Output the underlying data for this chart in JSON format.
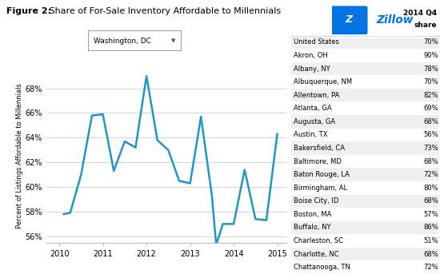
{
  "title_bold": "Figure 2:",
  "title_rest": " Share of For-Sale Inventory Affordable to Millennials",
  "dropdown_label": "Washington, DC",
  "ylabel": "Percent of Listings Affordable to Millennials",
  "ylim": [
    55.5,
    69.5
  ],
  "yticks": [
    56,
    58,
    60,
    62,
    64,
    66,
    68
  ],
  "ytick_labels": [
    "56%",
    "58%",
    "60%",
    "62%",
    "64%",
    "66%",
    "68%"
  ],
  "xlim": [
    2009.7,
    2015.2
  ],
  "xticks": [
    2010,
    2011,
    2012,
    2013,
    2014,
    2015
  ],
  "line_color": "#2196c4",
  "line_width": 1.8,
  "x_data": [
    2010.1,
    2010.25,
    2010.5,
    2010.75,
    2011.0,
    2011.25,
    2011.5,
    2011.75,
    2012.0,
    2012.25,
    2012.5,
    2012.75,
    2013.0,
    2013.25,
    2013.5,
    2013.6,
    2013.75,
    2014.0,
    2014.25,
    2014.5,
    2014.75,
    2015.0
  ],
  "y_data": [
    57.8,
    57.9,
    61.0,
    65.8,
    65.9,
    61.3,
    63.7,
    63.2,
    69.0,
    63.8,
    63.0,
    60.5,
    60.3,
    65.7,
    59.3,
    55.3,
    57.0,
    57.0,
    61.4,
    57.4,
    57.3,
    64.3
  ],
  "table_header_col1": "2014 Q4",
  "table_header_col2": "share",
  "table_data": [
    [
      "United States",
      "70%"
    ],
    [
      "Akron, OH",
      "90%"
    ],
    [
      "Albany, NY",
      "78%"
    ],
    [
      "Albuquerque, NM",
      "70%"
    ],
    [
      "Allentown, PA",
      "82%"
    ],
    [
      "Atlanta, GA",
      "69%"
    ],
    [
      "Augusta, GA",
      "68%"
    ],
    [
      "Austin, TX",
      "56%"
    ],
    [
      "Bakersfield, CA",
      "73%"
    ],
    [
      "Baltimore, MD",
      "68%"
    ],
    [
      "Baton Rouge, LA",
      "72%"
    ],
    [
      "Birmingham, AL",
      "80%"
    ],
    [
      "Boise City, ID",
      "68%"
    ],
    [
      "Boston, MA",
      "57%"
    ],
    [
      "Buffalo, NY",
      "86%"
    ],
    [
      "Charleston, SC",
      "51%"
    ],
    [
      "Charlotte, NC",
      "68%"
    ],
    [
      "Chattanooga, TN",
      "72%"
    ]
  ],
  "bg_color": "#ffffff",
  "grid_color": "#cccccc",
  "table_alt_row_color": "#f0f0f0",
  "table_bg_color": "#ffffff",
  "zillow_blue": "#0074E4",
  "zillow_text": "Zillow"
}
